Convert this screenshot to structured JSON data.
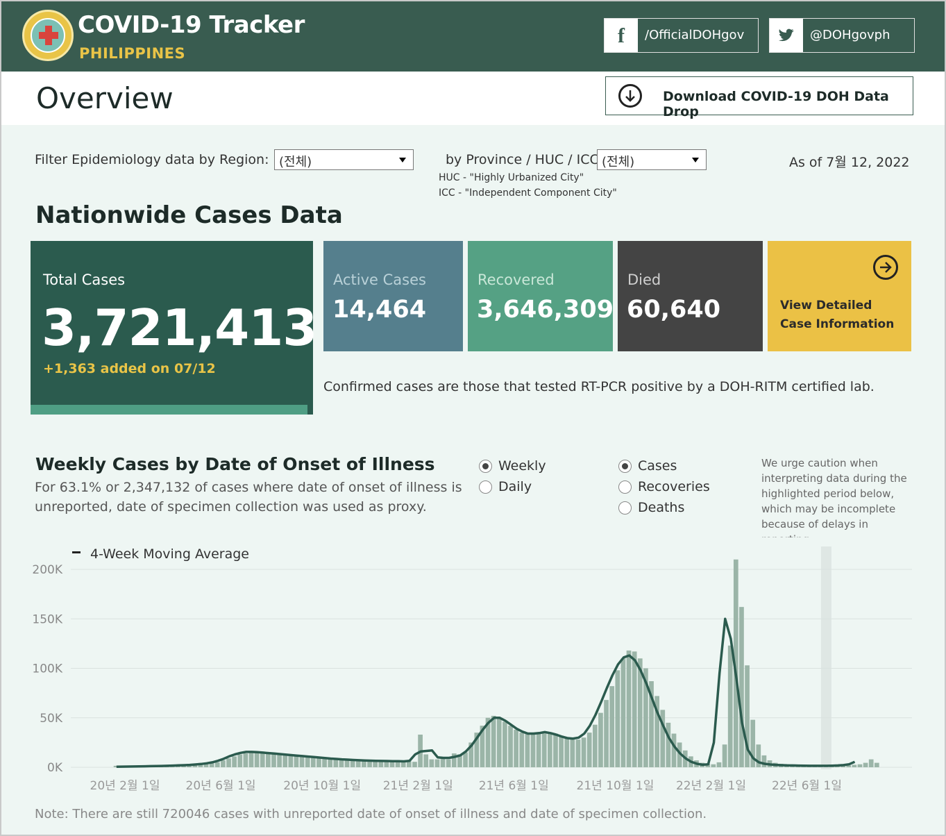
{
  "header": {
    "title": "COVID-19 Tracker",
    "subtitle": "PHILIPPINES",
    "facebook": "/OfficialDOHgov",
    "twitter": "@DOHgovph"
  },
  "overview": {
    "title": "Overview",
    "download_label": "Download COVID-19 DOH Data Drop"
  },
  "filters": {
    "region_label": "Filter Epidemiology data by Region:",
    "region_value": "(전체)",
    "province_label": "by Province / HUC / ICC:",
    "province_value": "(전체)",
    "huc_note": "HUC - \"Highly Urbanized City\"",
    "icc_note": "ICC - \"Independent Component City\"",
    "as_of": "As of 7월 12, 2022"
  },
  "nationwide": {
    "title": "Nationwide Cases Data",
    "total_label": "Total Cases",
    "total_value": "3,721,413",
    "added_text": "+1,363 added on 07/12",
    "active_label": "Active Cases",
    "active_value": "14,464",
    "recovered_label": "Recovered",
    "recovered_value": "3,646,309",
    "died_label": "Died",
    "died_value": "60,640",
    "detail_line1": "View Detailed",
    "detail_line2": "Case Information",
    "confirm_note": "Confirmed cases are those that tested RT-PCR positive by a DOH-RITM certified lab."
  },
  "weekly": {
    "title": "Weekly Cases by Date of Onset of Illness",
    "subtitle": "For 63.1% or 2,347,132 of cases where date of onset of illness is unreported, date of specimen collection was used as proxy.",
    "radio_weekly": "Weekly",
    "radio_daily": "Daily",
    "radio_cases": "Cases",
    "radio_recoveries": "Recoveries",
    "radio_deaths": "Deaths",
    "caution": "We urge caution when interpreting data during the highlighted period below, which may be incomplete because of delays in reporting.",
    "legend": "4-Week Moving Average",
    "footnote": "Note: There are still 720046 cases with unreported date of onset of illness and date of specimen collection."
  },
  "colors": {
    "header_bg": "#395c50",
    "accent_yellow": "#e9c447",
    "bar": "#9bb5a8",
    "line": "#2b5b4e"
  },
  "chart_data": {
    "type": "bar",
    "title": "Weekly Cases by Date of Onset of Illness",
    "xlabel": "",
    "ylabel": "",
    "ylim": [
      0,
      215000
    ],
    "yticks": [
      0,
      50000,
      100000,
      150000,
      200000
    ],
    "ytick_labels": [
      "0K",
      "50K",
      "100K",
      "150K",
      "200K"
    ],
    "xtick_labels": [
      "20년 2월 1일",
      "20년 6월 1일",
      "20년 10월 1일",
      "21년 2월 1일",
      "21년 6월 1일",
      "21년 10월 1일",
      "22년 2월 1일",
      "22년 6월 1일"
    ],
    "xtick_week_index": [
      0,
      17,
      35,
      52,
      69,
      87,
      104,
      121
    ],
    "first_week_offset": -2,
    "highlight_week_index": [
      126
    ],
    "series": [
      {
        "name": "Weekly cases",
        "values": [
          1500,
          500,
          300,
          400,
          600,
          700,
          800,
          1000,
          1200,
          1500,
          1700,
          1900,
          2100,
          2300,
          2500,
          2800,
          3200,
          4000,
          5000,
          7000,
          9000,
          11000,
          13000,
          14000,
          15000,
          15500,
          15000,
          14500,
          14000,
          13500,
          13000,
          12500,
          12000,
          11500,
          11000,
          10500,
          10000,
          9500,
          9000,
          8500,
          8000,
          8000,
          7500,
          7500,
          7000,
          7000,
          6500,
          6500,
          6500,
          6000,
          6000,
          6000,
          6000,
          5500,
          33000,
          13000,
          8000,
          8000,
          8500,
          8000,
          14000,
          13000,
          15000,
          25000,
          35000,
          42000,
          50000,
          52000,
          50000,
          46000,
          42000,
          38000,
          35000,
          34000,
          33000,
          34000,
          34000,
          35000,
          34000,
          32000,
          30000,
          29000,
          28000,
          30000,
          35000,
          43000,
          55000,
          68000,
          82000,
          98000,
          110000,
          118000,
          117000,
          110000,
          100000,
          87000,
          72000,
          58000,
          45000,
          34000,
          25000,
          17000,
          11000,
          7000,
          4500,
          3500,
          3000,
          5000,
          23000,
          123000,
          210000,
          162000,
          103000,
          48000,
          23000,
          12000,
          7000,
          4500,
          3500,
          3000,
          2600,
          2400,
          2200,
          2000,
          2000,
          2000,
          2000,
          2000,
          2000,
          2000,
          2000,
          2500,
          3000,
          4500,
          8000,
          4500
        ]
      },
      {
        "name": "4-Week Moving Average",
        "values": [
          500,
          600,
          700,
          800,
          900,
          1000,
          1100,
          1200,
          1300,
          1500,
          1700,
          1900,
          2100,
          2400,
          2800,
          3300,
          4000,
          5000,
          6500,
          8500,
          11000,
          13000,
          14500,
          15500,
          15500,
          15200,
          14800,
          14300,
          13800,
          13300,
          12800,
          12300,
          11800,
          11300,
          10800,
          10300,
          9800,
          9300,
          8800,
          8400,
          8000,
          7700,
          7400,
          7100,
          6900,
          6700,
          6500,
          6400,
          6300,
          6200,
          6100,
          6000,
          6500,
          13000,
          16000,
          16500,
          17000,
          10000,
          9500,
          9500,
          10500,
          12000,
          16000,
          22000,
          30000,
          38000,
          45000,
          50000,
          50000,
          47000,
          43000,
          39000,
          36000,
          34000,
          34000,
          34500,
          35500,
          34500,
          33000,
          31000,
          29500,
          29000,
          30000,
          34000,
          42000,
          53000,
          66000,
          80000,
          93000,
          104000,
          111000,
          113000,
          108000,
          98000,
          85000,
          70000,
          55000,
          42000,
          30000,
          21000,
          14000,
          9000,
          5500,
          3500,
          2500,
          3000,
          25000,
          95000,
          150000,
          130000,
          90000,
          45000,
          18000,
          9000,
          5000,
          3500,
          2800,
          2400,
          2100,
          1900,
          1800,
          1700,
          1600,
          1500,
          1500,
          1500,
          1500,
          1600,
          1800,
          2200,
          3000,
          5500
        ]
      }
    ]
  }
}
